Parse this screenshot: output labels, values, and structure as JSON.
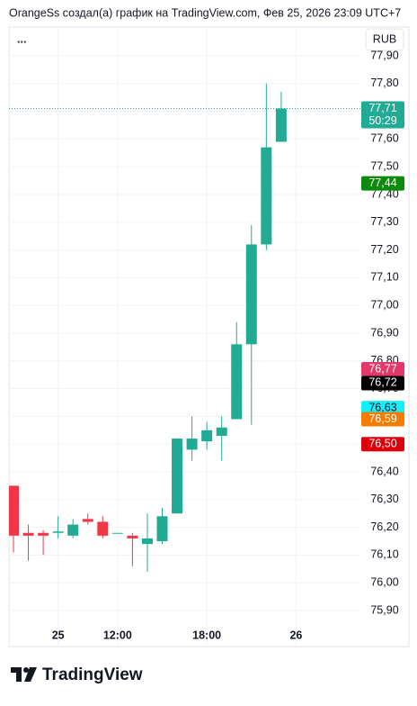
{
  "chart_data": {
    "type": "candlestick",
    "title": "OrangeSs создал(а) график на TradingView.com, Фев 25, 2026 23:09 UTC+7",
    "menu": "...",
    "currency": "RUB",
    "brand": "TradingView",
    "up_color": "#22ab94",
    "down_color": "#f23645",
    "grid": true,
    "categories": [
      null,
      null,
      null,
      "25",
      null,
      null,
      null,
      "12:00",
      null,
      null,
      null,
      null,
      null,
      "18:00",
      null,
      null,
      null,
      null,
      null,
      "26"
    ],
    "open": [
      76.35,
      76.18,
      76.18,
      76.18,
      76.17,
      76.23,
      76.22,
      76.18,
      76.17,
      76.14,
      76.15,
      76.25,
      76.48,
      76.51,
      76.53,
      76.59,
      76.86,
      77.22,
      77.59,
      null
    ],
    "high": [
      76.35,
      76.21,
      76.19,
      76.24,
      76.23,
      76.25,
      76.24,
      76.18,
      76.18,
      76.25,
      76.27,
      76.52,
      76.6,
      76.58,
      76.6,
      76.94,
      77.29,
      77.8,
      77.77,
      null
    ],
    "low": [
      76.11,
      76.08,
      76.1,
      76.16,
      76.16,
      76.21,
      76.16,
      76.18,
      76.06,
      76.04,
      76.14,
      76.25,
      76.44,
      76.48,
      76.44,
      76.59,
      76.57,
      77.2,
      77.59,
      null
    ],
    "close": [
      76.17,
      76.17,
      76.17,
      76.185,
      76.21,
      76.22,
      76.17,
      76.18,
      76.16,
      76.16,
      76.24,
      76.52,
      76.52,
      76.55,
      76.56,
      76.86,
      77.22,
      77.57,
      77.71,
      null
    ],
    "ylim": [
      75.81,
      77.99
    ],
    "yticks": [
      {
        "value": 75.9,
        "label": "75,90"
      },
      {
        "value": 76.0,
        "label": "76,00"
      },
      {
        "value": 76.1,
        "label": "76,10"
      },
      {
        "value": 76.2,
        "label": "76,20"
      },
      {
        "value": 76.3,
        "label": "76,30"
      },
      {
        "value": 76.4,
        "label": "76,40"
      },
      {
        "value": 76.5,
        "label": "76,50"
      },
      {
        "value": 76.6,
        "label": "76,60"
      },
      {
        "value": 76.7,
        "label": "76,70"
      },
      {
        "value": 76.8,
        "label": "76,80"
      },
      {
        "value": 76.9,
        "label": "76,90"
      },
      {
        "value": 77.0,
        "label": "77,00"
      },
      {
        "value": 77.1,
        "label": "77,10"
      },
      {
        "value": 77.2,
        "label": "77,20"
      },
      {
        "value": 77.3,
        "label": "77,30"
      },
      {
        "value": 77.4,
        "label": "77,40"
      },
      {
        "value": 77.5,
        "label": "77,50"
      },
      {
        "value": 77.6,
        "label": "77,60"
      },
      {
        "value": 77.7,
        "label": "77,70"
      },
      {
        "value": 77.8,
        "label": "77,80"
      },
      {
        "value": 77.9,
        "label": "77,90"
      }
    ],
    "markers": [
      {
        "value": 77.71,
        "label": "77,71",
        "countdown": "50:29",
        "color": "#22ab94",
        "text_color": "#ffffff"
      },
      {
        "value": 77.44,
        "label": "77,44",
        "color": "#0b8a0b",
        "text_color": "#ffffff"
      },
      {
        "value": 76.77,
        "label": "76,77",
        "color": "#e4386a",
        "text_color": "#ffffff"
      },
      {
        "value": 76.72,
        "label": "76,72",
        "color": "#000000",
        "text_color": "#ffffff"
      },
      {
        "value": 76.63,
        "label": "76,63",
        "color": "#12f0ff",
        "text_color": "#131722"
      },
      {
        "value": 76.59,
        "label": "76,59",
        "color": "#f57c00",
        "text_color": "#ffffff"
      },
      {
        "value": 76.5,
        "label": "76,50",
        "color": "#e0000b",
        "text_color": "#ffffff"
      }
    ]
  }
}
